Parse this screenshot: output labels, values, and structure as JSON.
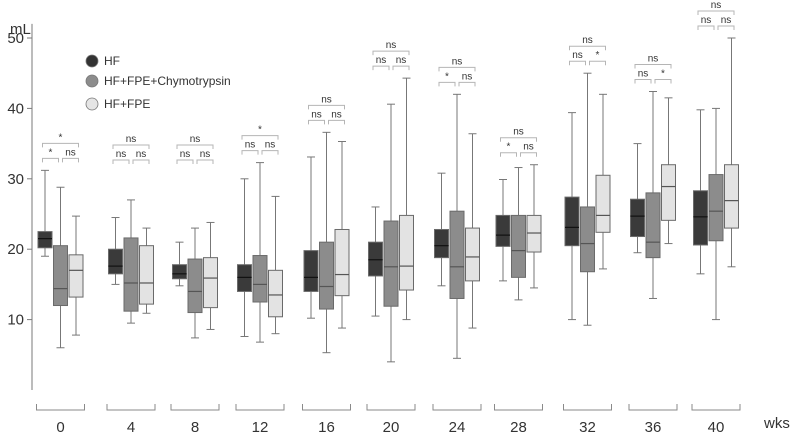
{
  "chart_data": {
    "type": "box",
    "y_unit": "mL",
    "x_unit": "wks",
    "ylim": [
      0,
      52
    ],
    "yticks": [
      10,
      20,
      30,
      40,
      50
    ],
    "categories": [
      "0",
      "4",
      "8",
      "12",
      "16",
      "20",
      "24",
      "28",
      "32",
      "36",
      "40"
    ],
    "legend": {
      "placement": "top-left",
      "items": [
        {
          "label": "HF",
          "color": "#333333"
        },
        {
          "label": "HF+FPE+Chymotrypsin",
          "color": "#8c8c8c"
        },
        {
          "label": "HF+FPE",
          "color": "#e5e5e5"
        }
      ]
    },
    "series": [
      {
        "name": "HF",
        "color": "#3a3a3a",
        "boxes": [
          [
            19.0,
            20.2,
            21.5,
            22.5,
            31.2
          ],
          [
            15.0,
            16.5,
            17.6,
            20.0,
            24.5
          ],
          [
            14.8,
            15.8,
            16.5,
            17.8,
            21.0
          ],
          [
            7.6,
            14.0,
            16.0,
            17.8,
            30.0
          ],
          [
            10.2,
            14.0,
            16.0,
            19.8,
            33.1
          ],
          [
            10.5,
            16.2,
            18.5,
            21.0,
            26.0
          ],
          [
            14.8,
            18.8,
            20.5,
            22.8,
            30.8
          ],
          [
            15.5,
            20.4,
            22.0,
            24.8,
            29.9
          ],
          [
            10.0,
            20.5,
            23.1,
            27.4,
            39.4
          ],
          [
            19.5,
            21.8,
            24.7,
            27.1,
            35.0
          ],
          [
            16.5,
            20.6,
            24.6,
            28.3,
            39.8
          ]
        ]
      },
      {
        "name": "HF+FPE+Chymotrypsin",
        "color": "#8c8c8c",
        "boxes": [
          [
            6.0,
            12.0,
            14.4,
            20.5,
            28.8
          ],
          [
            9.5,
            11.2,
            15.2,
            21.6,
            27.0
          ],
          [
            7.4,
            11.0,
            14.0,
            18.6,
            23.0
          ],
          [
            6.8,
            12.5,
            15.0,
            19.1,
            32.3
          ],
          [
            5.3,
            11.5,
            14.7,
            21.0,
            36.6
          ],
          [
            4.0,
            11.9,
            17.5,
            24.0,
            40.6
          ],
          [
            4.5,
            13.0,
            17.5,
            25.4,
            42.0
          ],
          [
            12.8,
            16.0,
            19.8,
            24.8,
            31.6
          ],
          [
            9.2,
            16.8,
            20.8,
            26.0,
            45.0
          ],
          [
            13.0,
            18.8,
            21.0,
            28.0,
            42.4
          ],
          [
            10.0,
            21.2,
            25.4,
            30.6,
            40.0
          ]
        ]
      },
      {
        "name": "HF+FPE",
        "color": "#e3e3e3",
        "boxes": [
          [
            7.8,
            13.2,
            17.0,
            19.2,
            24.7
          ],
          [
            10.9,
            12.2,
            15.2,
            20.5,
            23.0
          ],
          [
            8.6,
            11.7,
            15.9,
            18.8,
            23.8
          ],
          [
            8.0,
            10.4,
            13.5,
            17.0,
            27.5
          ],
          [
            8.8,
            13.4,
            16.4,
            22.8,
            35.3
          ],
          [
            10.0,
            14.2,
            17.6,
            24.8,
            44.3
          ],
          [
            8.8,
            15.5,
            18.9,
            23.0,
            36.4
          ],
          [
            14.5,
            19.6,
            22.3,
            24.8,
            32.0
          ],
          [
            17.2,
            22.4,
            24.8,
            30.5,
            42.0
          ],
          [
            20.8,
            24.1,
            28.9,
            32.0,
            41.5
          ],
          [
            17.5,
            23.0,
            26.9,
            32.0,
            50.0
          ]
        ]
      }
    ],
    "annotations": [
      {
        "week": "0",
        "hf_vs_chymo": "*",
        "chymo_vs_fpe": "ns",
        "hf_vs_fpe": "*"
      },
      {
        "week": "4",
        "hf_vs_chymo": "ns",
        "chymo_vs_fpe": "ns",
        "hf_vs_fpe": "ns"
      },
      {
        "week": "8",
        "hf_vs_chymo": "ns",
        "chymo_vs_fpe": "ns",
        "hf_vs_fpe": "ns"
      },
      {
        "week": "12",
        "hf_vs_chymo": "ns",
        "chymo_vs_fpe": "ns",
        "hf_vs_fpe": "*"
      },
      {
        "week": "16",
        "hf_vs_chymo": "ns",
        "chymo_vs_fpe": "ns",
        "hf_vs_fpe": "ns"
      },
      {
        "week": "20",
        "hf_vs_chymo": "ns",
        "chymo_vs_fpe": "ns",
        "hf_vs_fpe": "ns"
      },
      {
        "week": "24",
        "hf_vs_chymo": "*",
        "chymo_vs_fpe": "ns",
        "hf_vs_fpe": "ns"
      },
      {
        "week": "28",
        "hf_vs_chymo": "*",
        "chymo_vs_fpe": "ns",
        "hf_vs_fpe": "ns"
      },
      {
        "week": "32",
        "hf_vs_chymo": "ns",
        "chymo_vs_fpe": "*",
        "hf_vs_fpe": "ns"
      },
      {
        "week": "36",
        "hf_vs_chymo": "ns",
        "chymo_vs_fpe": "*",
        "hf_vs_fpe": "ns"
      },
      {
        "week": "40",
        "hf_vs_chymo": "ns",
        "chymo_vs_fpe": "ns",
        "hf_vs_fpe": "ns"
      }
    ]
  }
}
